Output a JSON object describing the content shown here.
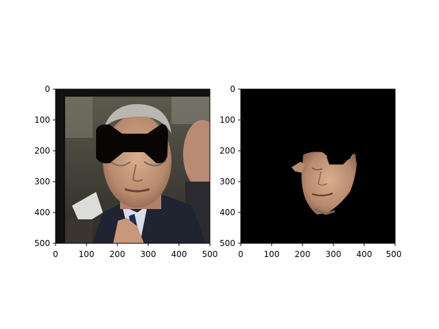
{
  "figure": {
    "panels": [
      {
        "name": "masked-photo",
        "image_alt": "Photo of a man in a dark suit with a black bow-tie shaped occlusion mask over the eyes",
        "xticks": [
          "0",
          "100",
          "200",
          "300",
          "400",
          "500"
        ],
        "yticks": [
          "0",
          "100",
          "200",
          "300",
          "400",
          "500"
        ]
      },
      {
        "name": "segmented-face",
        "image_alt": "Black background with only the segmented face region visible, with a gap where the mask covered the eyes",
        "xticks": [
          "0",
          "100",
          "200",
          "300",
          "400",
          "500"
        ],
        "yticks": [
          "0",
          "100",
          "200",
          "300",
          "400",
          "500"
        ]
      }
    ]
  },
  "colors": {
    "mask": "#0a0505",
    "background_black": "#000000",
    "skin": "#c49a7f",
    "suit": "#1f2430",
    "hair": "#b8b8b0"
  }
}
